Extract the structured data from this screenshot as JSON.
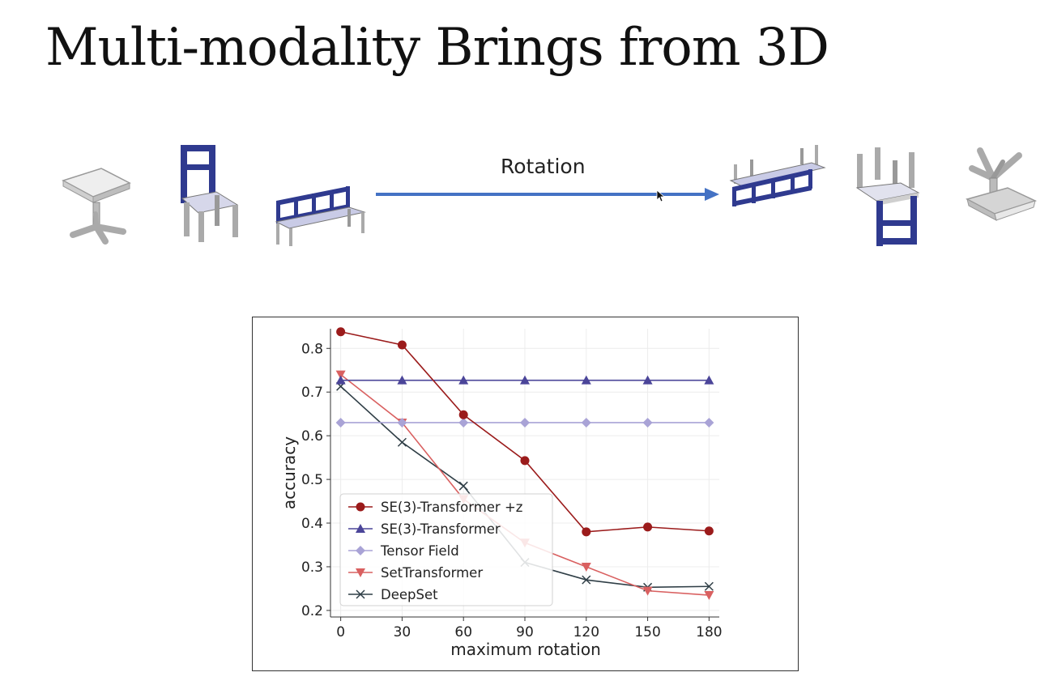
{
  "slide": {
    "title": "Multi-modality Brings from 3D",
    "rotation_label": "Rotation"
  },
  "colors": {
    "arrow": "#4472c4",
    "chair_frame": "#2f3a8f",
    "seat": "#c9cbe6",
    "gray_object": "#d9d9d9"
  },
  "icons": [
    "stool-icon",
    "chair-icon",
    "bench-icon",
    "rotated-bench-icon",
    "rotated-chair-icon",
    "rotated-stool-icon",
    "mouse-cursor-icon"
  ],
  "chart_data": {
    "type": "line",
    "xlabel": "maximum rotation",
    "ylabel": "accuracy",
    "x": [
      0,
      30,
      60,
      90,
      120,
      150,
      180
    ],
    "xticks": [
      "0",
      "30",
      "60",
      "90",
      "120",
      "150",
      "180"
    ],
    "yticks": [
      "0.2",
      "0.3",
      "0.4",
      "0.5",
      "0.6",
      "0.7",
      "0.8"
    ],
    "xlim": [
      -5,
      185
    ],
    "ylim": [
      0.185,
      0.845
    ],
    "grid": true,
    "legend_position": "lower-left",
    "series": [
      {
        "name": "SE(3)-Transformer +z",
        "color": "#9b1b1b",
        "marker": "circle",
        "values": [
          0.838,
          0.808,
          0.648,
          0.543,
          0.38,
          0.391,
          0.382
        ]
      },
      {
        "name": "SE(3)-Transformer",
        "color": "#4b4599",
        "marker": "triangle-up",
        "values": [
          0.727,
          0.727,
          0.727,
          0.727,
          0.727,
          0.727,
          0.727
        ]
      },
      {
        "name": "Tensor Field",
        "color": "#a9a3d6",
        "marker": "diamond",
        "values": [
          0.63,
          0.63,
          0.63,
          0.63,
          0.63,
          0.63,
          0.63
        ]
      },
      {
        "name": "SetTransformer",
        "color": "#d96060",
        "marker": "triangle-down",
        "values": [
          0.74,
          0.63,
          0.455,
          0.355,
          0.3,
          0.245,
          0.235
        ]
      },
      {
        "name": "DeepSet",
        "color": "#2f3e46",
        "marker": "x",
        "values": [
          0.713,
          0.585,
          0.485,
          0.31,
          0.27,
          0.253,
          0.255
        ]
      }
    ]
  }
}
